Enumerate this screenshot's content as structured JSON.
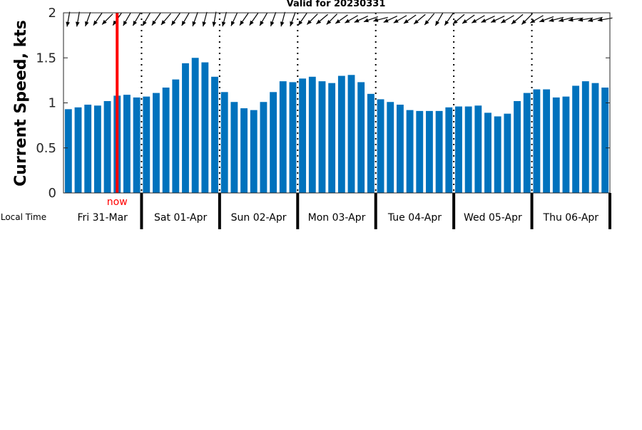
{
  "chart_data": {
    "type": "bar",
    "title": "Valid for 20230331",
    "ylabel": "Current Speed, kts",
    "ylim": [
      0,
      2
    ],
    "yticks": [
      "0",
      "0.5",
      "1",
      "1.5",
      "2"
    ],
    "bar_color": "#0072bd",
    "now_color": "#ff0000",
    "now_label": "now",
    "now_bar_index": 5,
    "time_row_label": "Local Time",
    "days": [
      "Fri 31-Mar",
      "Sat 01-Apr",
      "Sun 02-Apr",
      "Mon 03-Apr",
      "Tue 04-Apr",
      "Wed 05-Apr",
      "Thu 06-Apr"
    ],
    "bars_per_day": 8,
    "values": [
      0.93,
      0.95,
      0.98,
      0.97,
      1.02,
      1.08,
      1.09,
      1.06,
      1.07,
      1.11,
      1.17,
      1.26,
      1.44,
      1.5,
      1.45,
      1.29,
      1.12,
      1.01,
      0.94,
      0.92,
      1.01,
      1.12,
      1.24,
      1.23,
      1.27,
      1.29,
      1.24,
      1.22,
      1.3,
      1.31,
      1.23,
      1.1,
      1.04,
      1.01,
      0.98,
      0.92,
      0.91,
      0.91,
      0.91,
      0.95,
      0.96,
      0.96,
      0.97,
      0.89,
      0.85,
      0.88,
      1.02,
      1.11,
      1.15,
      1.15,
      1.06,
      1.07,
      1.19,
      1.24,
      1.22,
      1.17
    ],
    "arrow_directions_deg": [
      190,
      190,
      200,
      215,
      225,
      215,
      210,
      210,
      210,
      215,
      220,
      215,
      210,
      200,
      195,
      190,
      195,
      205,
      215,
      215,
      210,
      200,
      195,
      200,
      215,
      225,
      230,
      225,
      235,
      240,
      245,
      250,
      255,
      245,
      240,
      235,
      230,
      220,
      210,
      215,
      230,
      235,
      240,
      245,
      245,
      240,
      230,
      225,
      240,
      250,
      255,
      255,
      260,
      260,
      255,
      260
    ]
  }
}
